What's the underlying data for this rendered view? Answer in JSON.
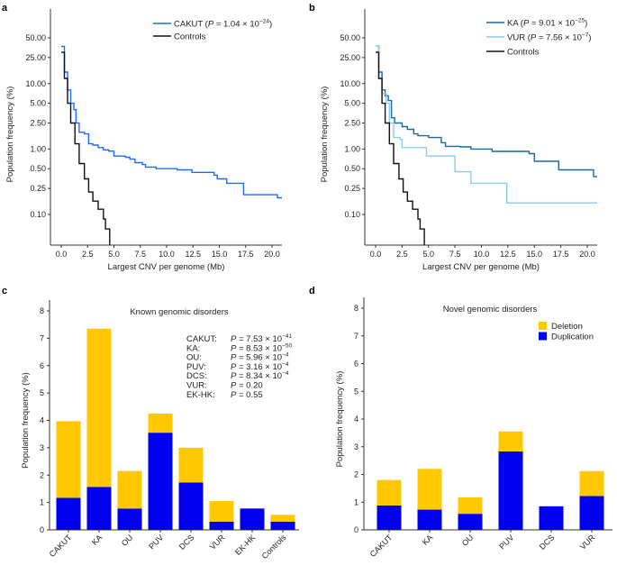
{
  "chart_data": [
    {
      "panel": "a",
      "type": "line",
      "step": true,
      "xlabel": "Largest CNV per genome (Mb)",
      "ylabel": "Population frequency (%)",
      "xlim": [
        -1,
        21
      ],
      "ylim": [
        0.034,
        137
      ],
      "yscale": "log",
      "xticks": [
        {
          "value": 0,
          "label": "0.0"
        },
        {
          "value": 2.5,
          "label": "2.5"
        },
        {
          "value": 5,
          "label": "5.0"
        },
        {
          "value": 7.5,
          "label": "7.5"
        },
        {
          "value": 10,
          "label": "10.0"
        },
        {
          "value": 12.5,
          "label": "12.5"
        },
        {
          "value": 15,
          "label": "15.0"
        },
        {
          "value": 17.5,
          "label": "17.5"
        },
        {
          "value": 20,
          "label": "20.0"
        }
      ],
      "yticks": [
        {
          "value": 50,
          "label": "50.00"
        },
        {
          "value": 25,
          "label": "25.00"
        },
        {
          "value": 10,
          "label": "10.00"
        },
        {
          "value": 5,
          "label": "5.00"
        },
        {
          "value": 2.5,
          "label": "2.50"
        },
        {
          "value": 1,
          "label": "1.00"
        },
        {
          "value": 0.5,
          "label": "0.50"
        },
        {
          "value": 0.25,
          "label": "0.25"
        },
        {
          "value": 0.1,
          "label": "0.10"
        }
      ],
      "legend_position": "top-right",
      "series": [
        {
          "name": "CAKUT",
          "p_prefix": " (",
          "p_italic": "P",
          "p_value": " = 1.04 × 10",
          "p_exponent": "−24",
          "p_suffix": ")",
          "color": "#1f6bff",
          "points": [
            [
              0,
              37
            ],
            [
              0.3,
              15
            ],
            [
              0.6,
              8
            ],
            [
              0.9,
              5
            ],
            [
              1.2,
              4
            ],
            [
              1.4,
              2.5
            ],
            [
              1.7,
              1.8
            ],
            [
              2.2,
              1.7
            ],
            [
              2.6,
              1.2
            ],
            [
              3,
              1.15
            ],
            [
              3.5,
              1.05
            ],
            [
              4,
              0.97
            ],
            [
              4.5,
              0.93
            ],
            [
              5,
              0.78
            ],
            [
              6.1,
              0.75
            ],
            [
              6.5,
              0.7
            ],
            [
              7,
              0.62
            ],
            [
              7.7,
              0.58
            ],
            [
              8,
              0.53
            ],
            [
              9,
              0.5
            ],
            [
              11,
              0.48
            ],
            [
              12.4,
              0.44
            ],
            [
              14.5,
              0.4
            ],
            [
              14.8,
              0.35
            ],
            [
              15.7,
              0.3
            ],
            [
              17.3,
              0.2
            ],
            [
              20.5,
              0.18
            ],
            [
              21,
              0.18
            ]
          ]
        },
        {
          "name": "Controls",
          "color": "#111111",
          "points": [
            [
              0,
              30
            ],
            [
              0.3,
              12
            ],
            [
              0.6,
              5
            ],
            [
              0.9,
              2.5
            ],
            [
              1.3,
              1.2
            ],
            [
              1.7,
              0.6
            ],
            [
              2.2,
              0.35
            ],
            [
              2.6,
              0.22
            ],
            [
              3,
              0.16
            ],
            [
              3.5,
              0.12
            ],
            [
              4,
              0.085
            ],
            [
              4.2,
              0.06
            ],
            [
              4.6,
              0.034
            ]
          ]
        }
      ]
    },
    {
      "panel": "b",
      "type": "line",
      "step": true,
      "xlabel": "Largest CNV per genome (Mb)",
      "ylabel": "Population frequency (%)",
      "xlim": [
        -1,
        21
      ],
      "ylim": [
        0.034,
        137
      ],
      "yscale": "log",
      "xticks": [
        {
          "value": 0,
          "label": "0.0"
        },
        {
          "value": 2.5,
          "label": "2.5"
        },
        {
          "value": 5,
          "label": "5.0"
        },
        {
          "value": 7.5,
          "label": "7.5"
        },
        {
          "value": 10,
          "label": "10.0"
        },
        {
          "value": 12.5,
          "label": "12.5"
        },
        {
          "value": 15,
          "label": "15.0"
        },
        {
          "value": 17.5,
          "label": "17.5"
        },
        {
          "value": 20,
          "label": "20.0"
        }
      ],
      "yticks": [
        {
          "value": 50,
          "label": "50.00"
        },
        {
          "value": 25,
          "label": "25.00"
        },
        {
          "value": 10,
          "label": "10.00"
        },
        {
          "value": 5,
          "label": "5.00"
        },
        {
          "value": 2.5,
          "label": "2.50"
        },
        {
          "value": 1,
          "label": "1.00"
        },
        {
          "value": 0.5,
          "label": "0.50"
        },
        {
          "value": 0.25,
          "label": "0.25"
        },
        {
          "value": 0.1,
          "label": "0.10"
        }
      ],
      "legend_position": "top-right",
      "series": [
        {
          "name": "KA",
          "p_prefix": " (",
          "p_italic": "P",
          "p_value": " = 9.01 × 10",
          "p_exponent": "−25",
          "p_suffix": ")",
          "color": "#1a6a9c",
          "points": [
            [
              0,
              38
            ],
            [
              0.3,
              15
            ],
            [
              0.6,
              8
            ],
            [
              0.9,
              6.5
            ],
            [
              1.2,
              5.5
            ],
            [
              1.5,
              3
            ],
            [
              1.8,
              2.5
            ],
            [
              2.5,
              2.2
            ],
            [
              3,
              2.0
            ],
            [
              3.6,
              1.7
            ],
            [
              4,
              1.6
            ],
            [
              5,
              1.5
            ],
            [
              6.2,
              1.25
            ],
            [
              6.6,
              1.1
            ],
            [
              8,
              1.08
            ],
            [
              9,
              1.0
            ],
            [
              11,
              0.92
            ],
            [
              14.5,
              0.85
            ],
            [
              15,
              0.65
            ],
            [
              17.3,
              0.48
            ],
            [
              20.6,
              0.38
            ],
            [
              21,
              0.38
            ]
          ]
        },
        {
          "name": "VUR",
          "p_prefix": " (",
          "p_italic": "P",
          "p_value": " = 7.56 × 10",
          "p_exponent": "−7",
          "p_suffix": ")",
          "color": "#8ccaf4",
          "points": [
            [
              0,
              38
            ],
            [
              0.3,
              12
            ],
            [
              0.6,
              7
            ],
            [
              1,
              5
            ],
            [
              1.3,
              2.5
            ],
            [
              1.7,
              1.5
            ],
            [
              2.3,
              1.4
            ],
            [
              2.5,
              1.05
            ],
            [
              4.8,
              0.78
            ],
            [
              7.5,
              0.45
            ],
            [
              9,
              0.3
            ],
            [
              12.4,
              0.15
            ],
            [
              21,
              0.15
            ]
          ]
        },
        {
          "name": "Controls",
          "color": "#111111",
          "points": [
            [
              0,
              30
            ],
            [
              0.3,
              12
            ],
            [
              0.6,
              5
            ],
            [
              0.9,
              2.5
            ],
            [
              1.3,
              1.2
            ],
            [
              1.7,
              0.6
            ],
            [
              2.2,
              0.35
            ],
            [
              2.6,
              0.22
            ],
            [
              3,
              0.16
            ],
            [
              3.5,
              0.12
            ],
            [
              4,
              0.085
            ],
            [
              4.2,
              0.06
            ],
            [
              4.6,
              0.034
            ]
          ]
        }
      ]
    },
    {
      "panel": "c",
      "type": "bar",
      "stacked": true,
      "title": "Known genomic disorders",
      "ylabel": "Population frequency (%)",
      "ylim": [
        0,
        8
      ],
      "yticks": [
        "0",
        "1",
        "2",
        "3",
        "4",
        "5",
        "6",
        "7",
        "8"
      ],
      "categories": [
        "CAKUT",
        "KA",
        "OU",
        "PUV",
        "DCS",
        "VUR",
        "EK-HK",
        "Controls"
      ],
      "series": [
        {
          "color": "#0000ee",
          "values": [
            1.17,
            1.57,
            0.78,
            3.55,
            1.73,
            0.3,
            0.78,
            0.3
          ]
        },
        {
          "color": "#ffc800",
          "values": [
            2.8,
            5.78,
            1.37,
            0.7,
            1.27,
            0.75,
            0,
            0.25
          ]
        }
      ],
      "annotations": [
        {
          "label": "CAKUT:",
          "p_italic": "P",
          "p_value": " = 7.53 × 10",
          "p_exponent": "−41"
        },
        {
          "label": "KA:",
          "p_italic": "P",
          "p_value": " = 8.53 × 10",
          "p_exponent": "−50"
        },
        {
          "label": "OU:",
          "p_italic": "P",
          "p_value": " = 5.96 × 10",
          "p_exponent": "−4"
        },
        {
          "label": "PUV:",
          "p_italic": "P",
          "p_value": " = 3.16 × 10",
          "p_exponent": "−4"
        },
        {
          "label": "DCS:",
          "p_italic": "P",
          "p_value": " = 8.34 × 10",
          "p_exponent": "−4"
        },
        {
          "label": "VUR:",
          "p_italic": "P",
          "p_value": " = 0.20",
          "p_exponent": ""
        },
        {
          "label": "EK-HK:",
          "p_italic": "P",
          "p_value": " = 0.55",
          "p_exponent": ""
        }
      ]
    },
    {
      "panel": "d",
      "type": "bar",
      "stacked": true,
      "title": "Novel genomic disorders",
      "ylabel": "Population frequency (%)",
      "ylim": [
        0,
        8
      ],
      "yticks": [
        "0",
        "1",
        "2",
        "3",
        "4",
        "5",
        "6",
        "7",
        "8"
      ],
      "categories": [
        "CAKUT",
        "KA",
        "OU",
        "PUV",
        "DCS",
        "VUR"
      ],
      "legend_position": "top-right",
      "series": [
        {
          "name": "Duplication",
          "color": "#0000ee",
          "values": [
            0.88,
            0.73,
            0.58,
            2.83,
            0.85,
            1.22
          ]
        },
        {
          "name": "Deletion",
          "color": "#ffc800",
          "values": [
            0.92,
            1.47,
            0.59,
            0.72,
            0,
            0.9
          ]
        }
      ]
    }
  ]
}
